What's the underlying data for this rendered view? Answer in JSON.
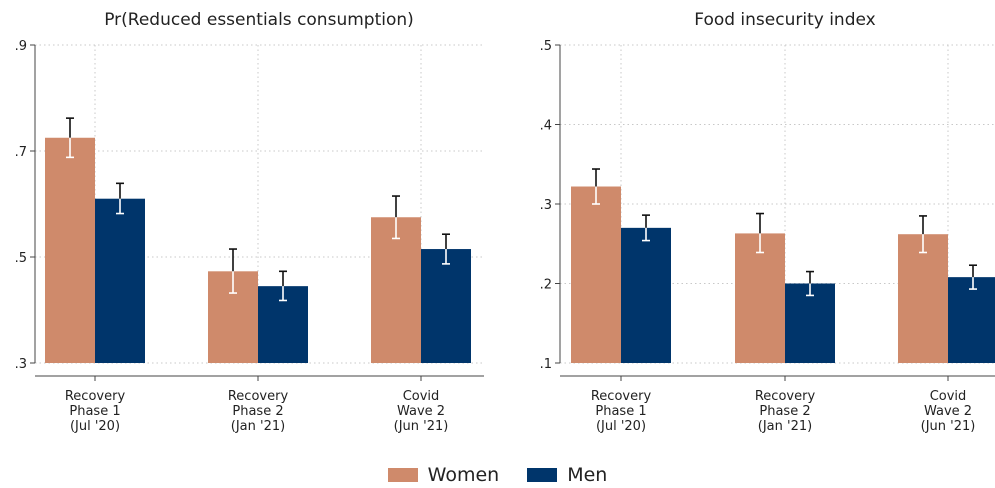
{
  "chart_data": [
    {
      "type": "bar",
      "title": "Pr(Reduced essentials consumption)",
      "categories": [
        [
          "Recovery",
          "Phase 1",
          "(Jul '20)"
        ],
        [
          "Recovery",
          "Phase 2",
          "(Jan '21)"
        ],
        [
          "Covid",
          "Wave 2",
          "(Jun '21)"
        ]
      ],
      "ylim": [
        0.3,
        0.9
      ],
      "yticks": [
        0.3,
        0.5,
        0.7,
        0.9
      ],
      "ytick_labels": [
        ".3",
        ".5",
        ".7",
        ".9"
      ],
      "grid": true,
      "series": [
        {
          "name": "Women",
          "color": "#cf8a6b",
          "values": [
            0.725,
            0.473,
            0.575
          ],
          "ci_low": [
            0.688,
            0.432,
            0.535
          ],
          "ci_high": [
            0.762,
            0.515,
            0.615
          ]
        },
        {
          "name": "Men",
          "color": "#00356b",
          "values": [
            0.61,
            0.445,
            0.515
          ],
          "ci_low": [
            0.582,
            0.418,
            0.487
          ],
          "ci_high": [
            0.639,
            0.473,
            0.543
          ]
        }
      ]
    },
    {
      "type": "bar",
      "title": "Food insecurity index",
      "categories": [
        [
          "Recovery",
          "Phase 1",
          "(Jul '20)"
        ],
        [
          "Recovery",
          "Phase 2",
          "(Jan '21)"
        ],
        [
          "Covid",
          "Wave 2",
          "(Jun '21)"
        ]
      ],
      "ylim": [
        0.1,
        0.5
      ],
      "yticks": [
        0.1,
        0.2,
        0.3,
        0.4,
        0.5
      ],
      "ytick_labels": [
        ".1",
        ".2",
        ".3",
        ".4",
        ".5"
      ],
      "grid": true,
      "series": [
        {
          "name": "Women",
          "color": "#cf8a6b",
          "values": [
            0.322,
            0.263,
            0.262
          ],
          "ci_low": [
            0.3,
            0.239,
            0.239
          ],
          "ci_high": [
            0.344,
            0.288,
            0.285
          ]
        },
        {
          "name": "Men",
          "color": "#00356b",
          "values": [
            0.27,
            0.2,
            0.208
          ],
          "ci_low": [
            0.254,
            0.185,
            0.193
          ],
          "ci_high": [
            0.286,
            0.215,
            0.223
          ]
        }
      ]
    }
  ],
  "legend": {
    "items": [
      {
        "label": "Women",
        "color": "#cf8a6b"
      },
      {
        "label": "Men",
        "color": "#00356b"
      }
    ],
    "position": "bottom"
  }
}
